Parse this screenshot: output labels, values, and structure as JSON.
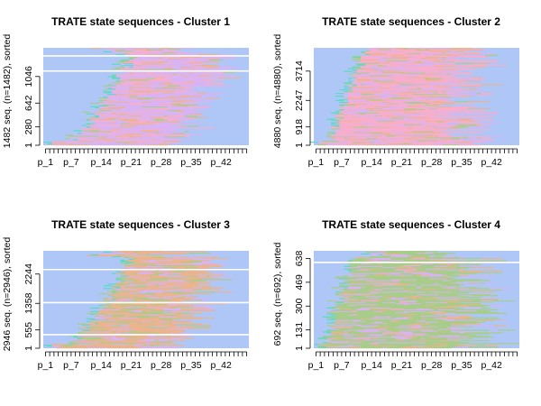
{
  "palette": [
    "#AEC7F7",
    "#F8AECB",
    "#D9B3F2",
    "#EAB48E",
    "#A8CD88",
    "#5ADAC6"
  ],
  "chart_data": [
    {
      "type": "sequence-index-plot",
      "title": "TRATE state sequences - Cluster 1",
      "ylabel": "1482 seq. (n=1482), sorted",
      "y_tick_labels": [
        "1",
        "280",
        "642",
        "1046"
      ],
      "y_tick_values": [
        1,
        280,
        642,
        1046
      ],
      "n_sequences": 1482,
      "x_tick_labels": [
        "p_1",
        "p_7",
        "p_14",
        "p_21",
        "p_28",
        "p_35",
        "p_42"
      ],
      "x_tick_values": [
        1,
        7,
        14,
        21,
        28,
        35,
        42
      ],
      "n_positions": 48,
      "base_state": 0,
      "dominant": [
        2,
        1,
        3
      ],
      "white_lines": [
        1130,
        1360
      ]
    },
    {
      "type": "sequence-index-plot",
      "title": "TRATE state sequences - Cluster 2",
      "ylabel": "4880 seq. (n=4880), sorted",
      "y_tick_labels": [
        "1",
        "918",
        "2247",
        "3714"
      ],
      "y_tick_values": [
        1,
        918,
        2247,
        3714
      ],
      "n_sequences": 4880,
      "x_tick_labels": [
        "p_1",
        "p_7",
        "p_14",
        "p_21",
        "p_28",
        "p_35",
        "p_42"
      ],
      "x_tick_values": [
        1,
        7,
        14,
        21,
        28,
        35,
        42
      ],
      "n_positions": 48,
      "base_state": 0,
      "dominant": [
        1,
        2,
        3
      ],
      "white_lines": []
    },
    {
      "type": "sequence-index-plot",
      "title": "TRATE state sequences - Cluster 3",
      "ylabel": "2946 seq. (n=2946), sorted",
      "y_tick_labels": [
        "1",
        "555",
        "1358",
        "2244"
      ],
      "y_tick_values": [
        1,
        555,
        1358,
        2244
      ],
      "n_sequences": 2946,
      "x_tick_labels": [
        "p_1",
        "p_7",
        "p_14",
        "p_21",
        "p_28",
        "p_35",
        "p_42"
      ],
      "x_tick_values": [
        1,
        7,
        14,
        21,
        28,
        35,
        42
      ],
      "n_positions": 48,
      "base_state": 0,
      "dominant": [
        3,
        2,
        4,
        5
      ],
      "white_lines": [
        410,
        1380,
        2380
      ]
    },
    {
      "type": "sequence-index-plot",
      "title": "TRATE state sequences - Cluster 4",
      "ylabel": "692 seq. (n=692), sorted",
      "y_tick_labels": [
        "1",
        "131",
        "300",
        "469",
        "638"
      ],
      "y_tick_values": [
        1,
        131,
        300,
        469,
        638
      ],
      "n_sequences": 692,
      "x_tick_labels": [
        "p_1",
        "p_7",
        "p_14",
        "p_21",
        "p_28",
        "p_35",
        "p_42"
      ],
      "x_tick_values": [
        1,
        7,
        14,
        21,
        28,
        35,
        42
      ],
      "n_positions": 48,
      "base_state": 0,
      "dominant": [
        4,
        2,
        3
      ],
      "white_lines": [
        610
      ]
    }
  ]
}
